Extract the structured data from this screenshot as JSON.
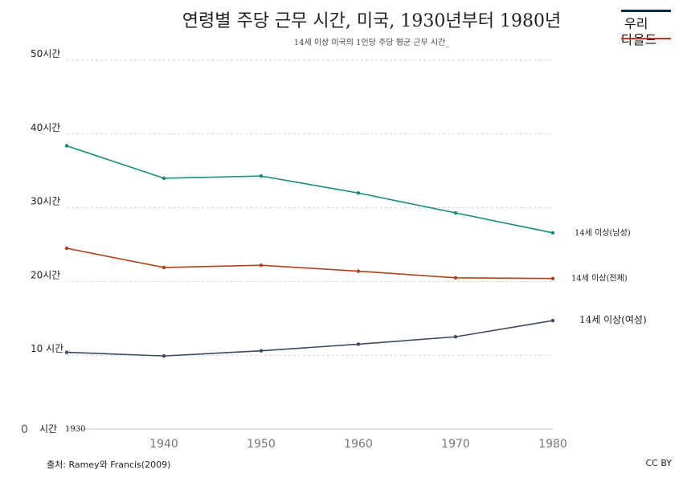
{
  "header": {
    "title": "연령별 주당 근무 시간, 미국, 1930년부터 1980년",
    "subtitle": "14세 이상 미국의 1인당 주당 평균 근무 시간_"
  },
  "logo": {
    "line1": "우리",
    "line2": "다올드",
    "colors": {
      "top": "#0f2a4a",
      "bottom": "#c0392b"
    }
  },
  "footer": {
    "source": "출처: Ramey와 Francis(2009)",
    "license": "CC BY"
  },
  "chart_data": {
    "type": "line",
    "x": [
      1930,
      1940,
      1950,
      1960,
      1970,
      1980
    ],
    "xlim": [
      1930,
      1980
    ],
    "ylim": [
      0,
      50
    ],
    "x_ticks": [
      {
        "value": 1930,
        "label": "1930"
      },
      {
        "value": 1940,
        "label": "1940"
      },
      {
        "value": 1950,
        "label": "1950"
      },
      {
        "value": 1960,
        "label": "1960"
      },
      {
        "value": 1970,
        "label": "1970"
      },
      {
        "value": 1980,
        "label": "1980"
      }
    ],
    "y_ticks": [
      {
        "value": 0,
        "label": "0"
      },
      {
        "value": 10,
        "label": "10 시간"
      },
      {
        "value": 20,
        "label": "20시간"
      },
      {
        "value": 30,
        "label": "30시간"
      },
      {
        "value": 40,
        "label": "40시간"
      },
      {
        "value": 50,
        "label": "50시간"
      }
    ],
    "y_zero_unit": "시간",
    "grid": true,
    "series": [
      {
        "name": "14세 이상(남성)",
        "color": "#138a7a",
        "values": [
          38.4,
          34.0,
          34.3,
          32.0,
          29.3,
          26.6
        ]
      },
      {
        "name": "14세 이상(전체)",
        "color": "#b5401a",
        "values": [
          24.5,
          21.9,
          22.2,
          21.4,
          20.5,
          20.4
        ]
      },
      {
        "name": "14세 이상(여성)",
        "color": "#3d4a63",
        "values": [
          10.4,
          9.9,
          10.6,
          11.5,
          12.5,
          14.7
        ]
      }
    ]
  }
}
